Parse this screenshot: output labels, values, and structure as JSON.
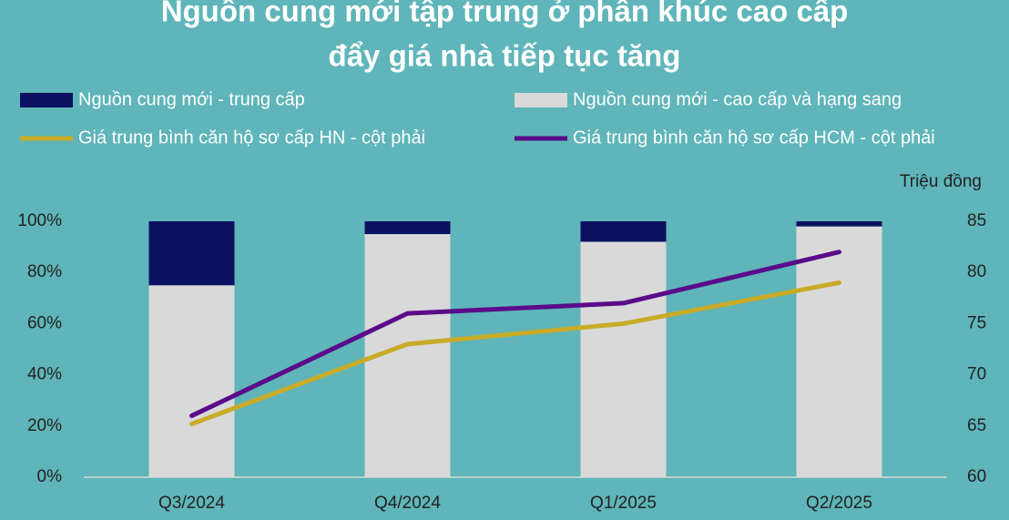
{
  "chart_data": {
    "type": "bar",
    "title": [
      "Nguồn cung mới tập trung ở phân khúc cao cấp",
      "đẩy giá nhà tiếp tục tăng"
    ],
    "y2_label": "Triệu đồng",
    "categories": [
      "Q3/2024",
      "Q4/2024",
      "Q1/2025",
      "Q2/2025"
    ],
    "series": [
      {
        "name": "Nguồn cung mới - trung cấp",
        "type": "bar",
        "stack": true,
        "color": "#0b1160",
        "values": [
          25,
          5,
          8,
          2
        ]
      },
      {
        "name": "Nguồn cung mới - cao cấp và hạng sang",
        "type": "bar",
        "stack": true,
        "color": "#d9d9d9",
        "values": [
          75,
          95,
          92,
          98
        ]
      },
      {
        "name": "Giá trung bình căn hộ sơ cấp HN - cột phải",
        "type": "line",
        "axis": "y2",
        "color": "#c9ab2a",
        "values": [
          65.2,
          73,
          75,
          79
        ]
      },
      {
        "name": "Giá trung bình căn hộ sơ cấp HCM - cột phải",
        "type": "line",
        "axis": "y2",
        "color": "#5a0b8a",
        "values": [
          66,
          76,
          77,
          82
        ]
      }
    ],
    "ylim": [
      0,
      100
    ],
    "yticks": [
      {
        "value": 0,
        "label": "0%"
      },
      {
        "value": 20,
        "label": "20%"
      },
      {
        "value": 40,
        "label": "40%"
      },
      {
        "value": 60,
        "label": "60%"
      },
      {
        "value": 80,
        "label": "80%"
      },
      {
        "value": 100,
        "label": "100%"
      }
    ],
    "y2lim": [
      60,
      85
    ],
    "y2ticks": [
      60,
      65,
      70,
      75,
      80,
      85
    ],
    "background": "#5fb5b9"
  }
}
